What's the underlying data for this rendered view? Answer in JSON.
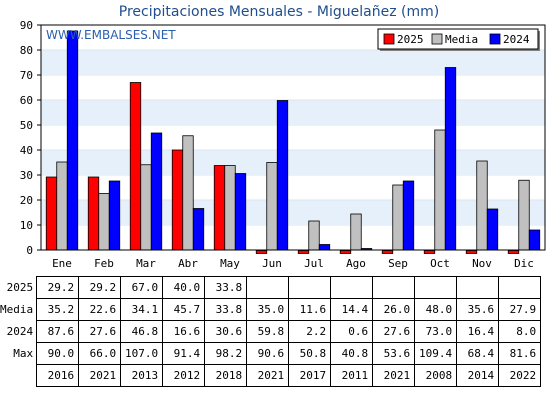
{
  "chart_data": {
    "type": "bar",
    "title": "Precipitaciones Mensuales - Miguelañez (mm)",
    "watermark": "WWW.EMBALSES.NET",
    "categories": [
      "Ene",
      "Feb",
      "Mar",
      "Abr",
      "May",
      "Jun",
      "Jul",
      "Ago",
      "Sep",
      "Oct",
      "Nov",
      "Dic"
    ],
    "ylim": [
      0,
      90
    ],
    "yticks": [
      0,
      10,
      20,
      30,
      40,
      50,
      60,
      70,
      80,
      90
    ],
    "grid": "horizontal bands",
    "legend_position": "top-right",
    "series": [
      {
        "name": "2025",
        "color": "#ff0000",
        "values": [
          29.2,
          29.2,
          67.0,
          40.0,
          33.8,
          0,
          0,
          0,
          0,
          0,
          0,
          0
        ]
      },
      {
        "name": "Media",
        "color": "#c0c0c0",
        "values": [
          35.2,
          22.6,
          34.1,
          45.7,
          33.8,
          35.0,
          11.6,
          14.4,
          26.0,
          48.0,
          35.6,
          27.9
        ]
      },
      {
        "name": "2024",
        "color": "#0000ff",
        "values": [
          87.6,
          27.6,
          46.8,
          16.6,
          30.6,
          59.8,
          2.2,
          0.6,
          27.6,
          73.0,
          16.4,
          8.0
        ]
      }
    ]
  },
  "table": {
    "rows": [
      {
        "label": "2025",
        "cells": [
          "29.2",
          "29.2",
          "67.0",
          "40.0",
          "33.8",
          "",
          "",
          "",
          "",
          "",
          "",
          ""
        ]
      },
      {
        "label": "Media",
        "cells": [
          "35.2",
          "22.6",
          "34.1",
          "45.7",
          "33.8",
          "35.0",
          "11.6",
          "14.4",
          "26.0",
          "48.0",
          "35.6",
          "27.9"
        ]
      },
      {
        "label": "2024",
        "cells": [
          "87.6",
          "27.6",
          "46.8",
          "16.6",
          "30.6",
          "59.8",
          "2.2",
          "0.6",
          "27.6",
          "73.0",
          "16.4",
          "8.0"
        ]
      },
      {
        "label": "Max",
        "cells": [
          "90.0",
          "66.0",
          "107.0",
          "91.4",
          "98.2",
          "90.6",
          "50.8",
          "40.8",
          "53.6",
          "109.4",
          "68.4",
          "81.6"
        ]
      },
      {
        "label": "",
        "cells": [
          "2016",
          "2021",
          "2013",
          "2012",
          "2018",
          "2021",
          "2017",
          "2011",
          "2021",
          "2008",
          "2014",
          "2022"
        ]
      }
    ]
  }
}
